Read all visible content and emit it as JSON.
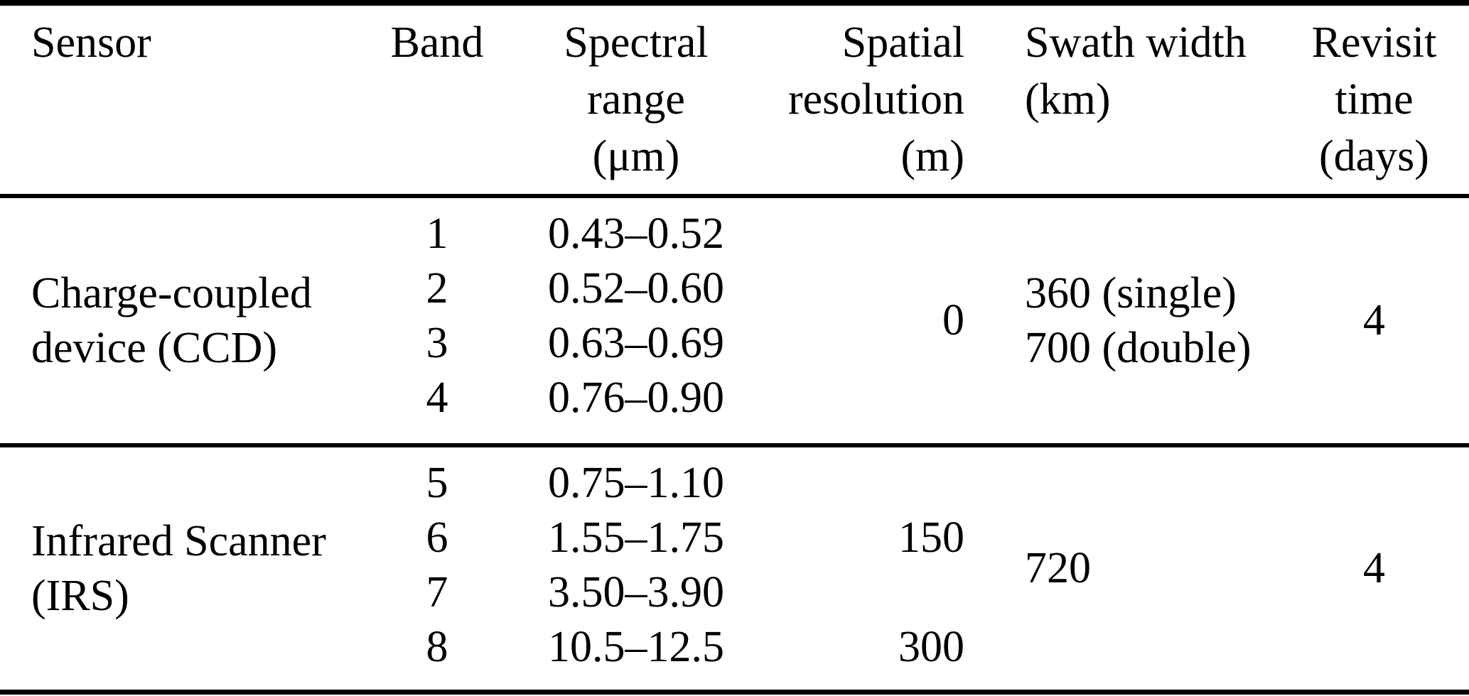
{
  "page": {
    "background": "#ffffff",
    "text_color": "#000000",
    "rule_color": "#000000"
  },
  "table": {
    "header": {
      "sensor": [
        "Sensor",
        "",
        ""
      ],
      "band": [
        "Band",
        "",
        ""
      ],
      "spectral": [
        "Spectral",
        "range",
        "(μm)"
      ],
      "spatial": [
        "Spatial",
        "resolution",
        "(m)"
      ],
      "swath": [
        "Swath width",
        "(km)",
        ""
      ],
      "revisit": [
        "Revisit",
        "time",
        "(days)"
      ]
    },
    "groups": [
      {
        "sensor_lines": [
          "Charge-coupled",
          "device (CCD)"
        ],
        "bands": [
          "1",
          "2",
          "3",
          "4"
        ],
        "spectral_ranges": [
          "0.43–0.52",
          "0.52–0.60",
          "0.63–0.69",
          "0.76–0.90"
        ],
        "spatial_resolution": "0",
        "swath_lines": [
          "360 (single)",
          "700 (double)"
        ],
        "revisit_time": "4"
      },
      {
        "sensor_lines": [
          "Infrared Scanner",
          "(IRS)"
        ],
        "bands": [
          "5",
          "6",
          "7",
          "8"
        ],
        "spectral_ranges": [
          "0.75–1.10",
          "1.55–1.75",
          "3.50–3.90",
          "10.5–12.5"
        ],
        "spatial_rows": [
          "",
          "150",
          "",
          "300"
        ],
        "swath_width": "720",
        "revisit_time": "4"
      }
    ]
  }
}
